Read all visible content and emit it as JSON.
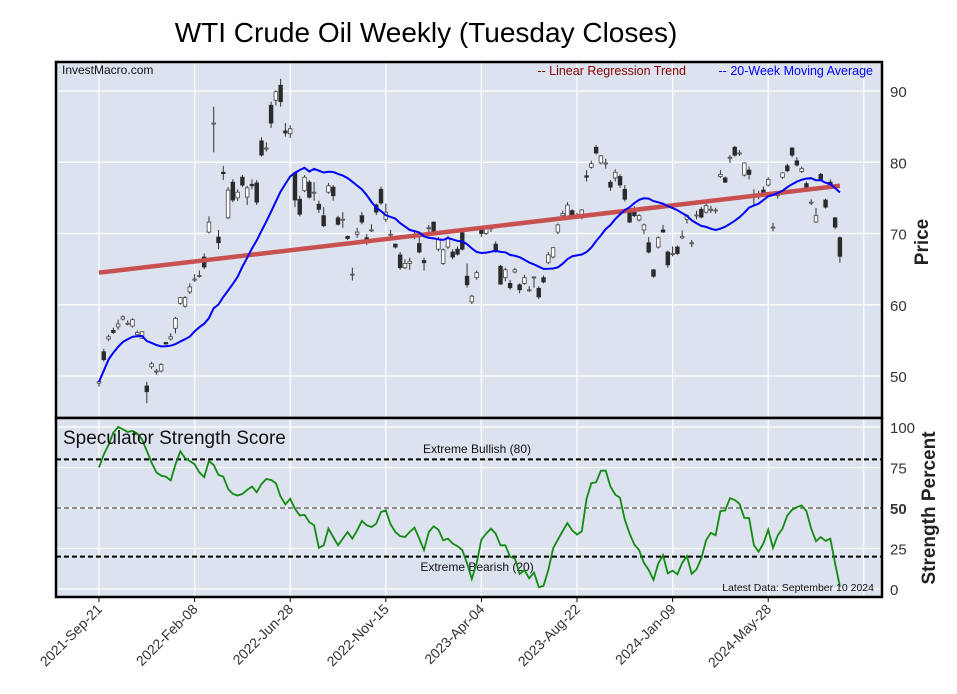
{
  "chart_data": [
    {
      "type": "candlestick",
      "title": "WTI Crude Oil Weekly (Tuesday Closes)",
      "watermark": "InvestMacro.com",
      "ylabel": "Price",
      "ylim": [
        44.3,
        94
      ],
      "yticks": [
        50,
        60,
        70,
        80,
        90
      ],
      "grid": true,
      "legend_position": "top-right",
      "legend": [
        {
          "label": "-- Linear Regression Trend",
          "color": "#8b0000"
        },
        {
          "label": "-- 20-Week Moving Average",
          "color": "#0000ff"
        }
      ],
      "trend_line": {
        "start": 64.5,
        "end": 76.7,
        "color": "#c85050"
      },
      "moving_average": {
        "period": 20,
        "color": "#0000ff"
      },
      "x_tick_labels": [
        "2021-Sep-21",
        "2022-Feb-08",
        "2022-Jun-28",
        "2022-Nov-15",
        "2023-Apr-04",
        "2023-Aug-22",
        "2024-Jan-09",
        "2024-May-28"
      ],
      "x_tick_every_weeks": 20,
      "ohlc": [
        [
          49.0,
          49.3,
          48.5,
          49.2
        ],
        [
          53.4,
          53.8,
          52.0,
          52.3
        ],
        [
          55.2,
          55.8,
          54.9,
          55.5
        ],
        [
          56.4,
          56.8,
          55.9,
          56.1
        ],
        [
          56.9,
          57.9,
          56.5,
          57.3
        ],
        [
          58.0,
          58.5,
          57.8,
          58.3
        ],
        [
          57.4,
          57.8,
          57.1,
          57.4
        ],
        [
          57.0,
          58.1,
          56.8,
          57.9
        ],
        [
          55.8,
          56.4,
          55.5,
          56.1
        ],
        [
          55.3,
          56.3,
          55.2,
          56.2
        ],
        [
          48.6,
          49.2,
          46.2,
          47.8
        ],
        [
          51.3,
          52.0,
          51.0,
          51.7
        ],
        [
          50.7,
          51.0,
          50.2,
          50.7
        ],
        [
          50.7,
          51.8,
          50.5,
          51.6
        ],
        [
          54.7,
          54.8,
          54.4,
          54.5
        ],
        [
          55.2,
          56.0,
          55.0,
          55.5
        ],
        [
          56.7,
          58.3,
          56.0,
          58.1
        ],
        [
          60.2,
          61.1,
          60.0,
          61.0
        ],
        [
          59.8,
          61.2,
          59.6,
          61.0
        ],
        [
          61.8,
          63.0,
          61.5,
          62.5
        ],
        [
          63.5,
          64.3,
          63.2,
          63.6
        ],
        [
          64.0,
          64.8,
          63.8,
          64.1
        ],
        [
          66.7,
          67.2,
          65.0,
          65.3
        ],
        [
          70.2,
          72.4,
          70.0,
          71.6
        ],
        [
          85.4,
          87.8,
          81.4,
          85.5
        ],
        [
          69.5,
          70.5,
          67.8,
          68.7
        ],
        [
          78.6,
          79.5,
          77.5,
          78.4
        ],
        [
          72.2,
          76.5,
          72.0,
          76.1
        ],
        [
          77.2,
          77.6,
          74.4,
          74.7
        ],
        [
          75.0,
          76.2,
          74.6,
          75.8
        ],
        [
          77.9,
          78.2,
          76.5,
          76.8
        ],
        [
          75.1,
          76.7,
          74.0,
          76.4
        ],
        [
          76.9,
          77.6,
          76.2,
          76.7
        ],
        [
          77.1,
          77.5,
          74.0,
          74.4
        ],
        [
          83.0,
          83.5,
          80.8,
          81.0
        ],
        [
          82.0,
          82.8,
          81.5,
          82.0
        ],
        [
          88.0,
          88.5,
          84.8,
          85.5
        ],
        [
          88.7,
          90.1,
          88.0,
          89.9
        ],
        [
          90.8,
          91.7,
          87.8,
          88.5
        ],
        [
          84.4,
          85.5,
          83.6,
          84.1
        ],
        [
          84.0,
          85.2,
          83.4,
          84.7
        ],
        [
          78.5,
          78.6,
          73.7,
          74.7
        ],
        [
          74.8,
          75.3,
          72.4,
          72.7
        ],
        [
          76.0,
          78.2,
          75.8,
          77.9
        ],
        [
          77.2,
          77.5,
          74.9,
          75.1
        ],
        [
          75.8,
          77.2,
          74.6,
          75.8
        ],
        [
          74.1,
          74.6,
          72.9,
          73.4
        ],
        [
          72.5,
          73.7,
          70.9,
          71.1
        ],
        [
          75.8,
          77.1,
          75.6,
          76.7
        ],
        [
          76.5,
          76.8,
          74.6,
          75.3
        ],
        [
          72.2,
          72.5,
          71.1,
          71.3
        ],
        [
          72.0,
          73.0,
          70.8,
          72.0
        ],
        [
          69.6,
          69.7,
          69.1,
          69.3
        ],
        [
          64.3,
          65.2,
          63.4,
          64.3
        ],
        [
          69.9,
          70.8,
          69.4,
          70.2
        ],
        [
          72.5,
          73.0,
          71.3,
          71.6
        ],
        [
          69.4,
          69.9,
          68.4,
          69.1
        ],
        [
          70.5,
          71.3,
          70.2,
          70.5
        ],
        [
          74.0,
          74.2,
          72.6,
          73.0
        ],
        [
          76.2,
          76.6,
          74.0,
          74.3
        ],
        [
          72.0,
          74.2,
          71.6,
          73.0
        ],
        [
          69.9,
          70.5,
          69.3,
          69.9
        ],
        [
          68.5,
          68.6,
          67.9,
          68.1
        ],
        [
          67.0,
          67.4,
          64.9,
          65.2
        ],
        [
          65.2,
          66.4,
          65.0,
          65.8
        ],
        [
          65.8,
          66.6,
          64.9,
          66.1
        ],
        [
          69.8,
          70.4,
          69.2,
          69.8
        ],
        [
          68.6,
          69.8,
          67.2,
          67.4
        ],
        [
          66.2,
          66.6,
          64.8,
          65.9
        ],
        [
          70.8,
          71.2,
          70.0,
          70.8
        ],
        [
          71.6,
          71.7,
          69.8,
          70.0
        ],
        [
          67.8,
          69.5,
          67.5,
          69.2
        ],
        [
          65.8,
          67.9,
          65.6,
          67.7
        ],
        [
          68.1,
          69.7,
          67.8,
          69.4
        ],
        [
          67.4,
          67.8,
          66.4,
          66.7
        ],
        [
          67.8,
          68.2,
          66.9,
          67.1
        ],
        [
          70.1,
          70.2,
          67.6,
          67.8
        ],
        [
          64.0,
          65.8,
          62.4,
          62.8
        ],
        [
          60.4,
          61.4,
          60.1,
          61.2
        ],
        [
          63.8,
          64.8,
          63.5,
          64.5
        ],
        [
          70.6,
          71.0,
          69.5,
          70.0
        ],
        [
          70.0,
          71.0,
          69.8,
          70.8
        ],
        [
          70.8,
          71.2,
          70.2,
          70.8
        ],
        [
          68.5,
          68.9,
          67.3,
          67.5
        ],
        [
          65.4,
          65.6,
          62.8,
          62.9
        ],
        [
          63.8,
          65.2,
          63.3,
          64.9
        ],
        [
          63.0,
          63.5,
          62.1,
          62.4
        ],
        [
          64.6,
          65.2,
          64.4,
          64.9
        ],
        [
          62.8,
          63.0,
          61.6,
          62.1
        ],
        [
          63.0,
          64.2,
          62.8,
          63.8
        ],
        [
          62.1,
          62.6,
          61.8,
          62.1
        ],
        [
          63.9,
          64.0,
          62.4,
          63.9
        ],
        [
          62.3,
          62.6,
          60.8,
          61.1
        ],
        [
          63.8,
          64.1,
          63.0,
          63.2
        ],
        [
          65.9,
          67.4,
          65.7,
          67.0
        ],
        [
          66.7,
          68.1,
          66.5,
          68.0
        ],
        [
          70.2,
          71.4,
          69.9,
          71.2
        ],
        [
          72.5,
          73.2,
          72.2,
          72.8
        ],
        [
          72.3,
          74.4,
          72.1,
          74.0
        ],
        [
          73.2,
          73.4,
          72.3,
          72.5
        ],
        [
          72.6,
          72.9,
          72.4,
          72.6
        ],
        [
          72.5,
          73.4,
          72.0,
          73.3
        ],
        [
          78.1,
          78.9,
          77.3,
          77.9
        ],
        [
          79.3,
          80.2,
          79.1,
          79.8
        ],
        [
          82.1,
          82.4,
          81.1,
          81.3
        ],
        [
          79.9,
          81.0,
          79.7,
          80.9
        ],
        [
          79.9,
          80.5,
          79.1,
          79.9
        ],
        [
          77.2,
          77.5,
          76.0,
          76.5
        ],
        [
          77.8,
          79.0,
          77.3,
          78.6
        ],
        [
          78.0,
          78.3,
          76.4,
          76.8
        ],
        [
          76.2,
          76.8,
          74.5,
          74.8
        ],
        [
          72.9,
          73.2,
          71.5,
          71.6
        ],
        [
          73.0,
          73.8,
          72.3,
          72.5
        ],
        [
          71.9,
          72.7,
          71.7,
          72.5
        ],
        [
          70.5,
          71.4,
          69.9,
          71.2
        ],
        [
          68.7,
          69.5,
          67.2,
          67.4
        ],
        [
          64.9,
          65.0,
          63.8,
          64.0
        ],
        [
          68.1,
          69.6,
          67.9,
          69.4
        ],
        [
          70.5,
          71.2,
          70.1,
          70.2
        ],
        [
          67.4,
          67.6,
          65.2,
          65.6
        ],
        [
          67.2,
          68.2,
          66.8,
          67.2
        ],
        [
          68.1,
          68.3,
          67.0,
          67.2
        ],
        [
          69.4,
          70.4,
          69.2,
          69.6
        ],
        [
          72.0,
          72.7,
          71.4,
          72.5
        ],
        [
          68.7,
          69.1,
          68.1,
          68.7
        ],
        [
          72.6,
          73.2,
          72.0,
          72.6
        ],
        [
          73.4,
          73.7,
          72.1,
          72.3
        ],
        [
          73.0,
          74.4,
          72.8,
          73.9
        ],
        [
          73.4,
          73.9,
          72.9,
          73.4
        ],
        [
          73.3,
          73.6,
          72.8,
          73.3
        ],
        [
          78.0,
          78.9,
          77.8,
          78.3
        ],
        [
          77.8,
          78.0,
          77.1,
          77.2
        ],
        [
          80.7,
          81.0,
          79.9,
          80.7
        ],
        [
          82.1,
          82.3,
          80.8,
          81.0
        ],
        [
          81.3,
          81.7,
          80.9,
          81.3
        ],
        [
          78.2,
          80.0,
          78.0,
          79.9
        ],
        [
          78.9,
          79.4,
          77.6,
          78.3
        ],
        [
          75.3,
          76.2,
          73.9,
          75.3
        ],
        [
          75.4,
          76.0,
          74.8,
          75.4
        ],
        [
          76.1,
          76.6,
          75.6,
          75.8
        ],
        [
          76.8,
          77.9,
          76.6,
          77.6
        ],
        [
          70.9,
          71.5,
          70.3,
          70.9
        ],
        [
          75.3,
          75.7,
          74.9,
          75.5
        ],
        [
          77.9,
          78.6,
          77.7,
          78.5
        ],
        [
          79.5,
          79.8,
          78.6,
          78.8
        ],
        [
          82.0,
          82.1,
          80.7,
          81.0
        ],
        [
          80.2,
          80.7,
          79.4,
          79.6
        ],
        [
          78.7,
          79.4,
          78.5,
          79.1
        ],
        [
          77.0,
          77.3,
          76.0,
          76.5
        ],
        [
          74.4,
          74.8,
          74.0,
          74.4
        ],
        [
          71.6,
          73.6,
          71.5,
          72.5
        ],
        [
          78.3,
          78.5,
          77.4,
          77.6
        ],
        [
          74.7,
          74.9,
          73.5,
          73.7
        ],
        [
          77.2,
          77.6,
          76.4,
          76.8
        ],
        [
          72.2,
          72.3,
          70.6,
          70.9
        ],
        [
          69.4,
          69.6,
          65.9,
          66.8
        ]
      ]
    },
    {
      "type": "line",
      "title": "Speculator Strength Score",
      "ylabel": "Strength Percent",
      "ylim": [
        0,
        100
      ],
      "yticks": [
        0,
        25,
        50,
        75,
        100
      ],
      "line_color": "#138a13",
      "reference_lines": [
        {
          "value": 80,
          "label": "Extreme Bullish (80)",
          "style": "dashed",
          "color": "#000000"
        },
        {
          "value": 50,
          "label": "",
          "style": "dashed",
          "color": "#808080"
        },
        {
          "value": 20,
          "label": "Extreme Bearish (20)",
          "style": "dashed",
          "color": "#000000"
        }
      ],
      "annotation": "Latest Data: September 10 2024",
      "values": [
        75,
        83,
        89,
        96.5,
        100,
        98.6,
        97,
        97.5,
        96,
        92.4,
        85.3,
        78,
        72,
        70,
        69.3,
        67,
        77,
        85,
        80.8,
        79,
        77,
        72,
        69,
        79,
        76.5,
        70.4,
        69.3,
        61.8,
        58.7,
        57.7,
        58.7,
        61.2,
        63.2,
        59.7,
        64.8,
        67.9,
        67.3,
        65.3,
        57.1,
        52.2,
        55.7,
        49.5,
        45.4,
        45.8,
        41.3,
        39.3,
        25.4,
        27,
        37.3,
        32.1,
        27,
        31.1,
        35.2,
        31.1,
        36.2,
        42,
        39.3,
        38.3,
        40.3,
        47.5,
        48.5,
        39.9,
        35.2,
        32.6,
        32.1,
        35.2,
        37.9,
        31.1,
        24,
        35.2,
        38.7,
        36.6,
        30.1,
        31.1,
        28.1,
        26.4,
        24,
        15.8,
        6.2,
        15.8,
        30.5,
        34.2,
        37.3,
        34.2,
        27,
        27,
        19.9,
        18.9,
        9.3,
        11.7,
        6.6,
        10.1,
        1.1,
        1.9,
        11.7,
        25,
        30.5,
        35.8,
        40.7,
        36.2,
        33.6,
        35.6,
        55.7,
        65.3,
        65.9,
        73,
        73,
        63.2,
        58.3,
        56.3,
        42.8,
        34.2,
        27.4,
        24,
        16.2,
        11.7,
        5.6,
        15.8,
        20.9,
        9.7,
        11.3,
        9.1,
        16.2,
        20.3,
        9.3,
        12.1,
        18.9,
        30.1,
        34.6,
        33.2,
        48.1,
        48.5,
        56.1,
        55,
        52.6,
        43.8,
        43.8,
        27,
        23,
        28.1,
        36.6,
        25.4,
        33.2,
        37.3,
        45.4,
        48.9,
        50.5,
        51.6,
        48.1,
        37.3,
        29.5,
        32.1,
        29.7,
        31.1,
        15.8,
        1.5
      ]
    }
  ]
}
